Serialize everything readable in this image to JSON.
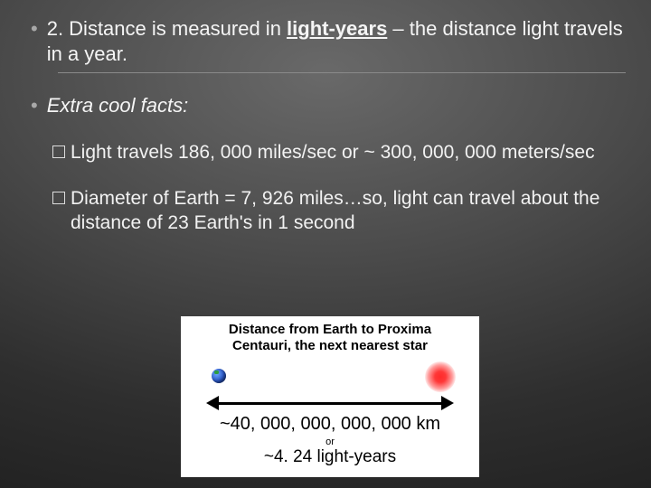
{
  "bullets": {
    "main": {
      "prefix": "2. Distance is measured in ",
      "keyword": "light-years",
      "suffix": " – the distance light travels in a year."
    },
    "extra": "Extra cool facts:"
  },
  "facts": {
    "a": "Light travels 186, 000 miles/sec or  ~ 300, 000, 000 meters/sec",
    "b": "Diameter of Earth = 7, 926 miles…so, light can travel about the distance of 23 Earth's in 1 second"
  },
  "diagram": {
    "title_line1": "Distance from Earth to Proxima",
    "title_line2": "Centauri, the next nearest star",
    "km": "~40, 000, 000, 000, 000 km",
    "or": "or",
    "ly": "~4. 24  light-years",
    "colors": {
      "box_bg": "#ffffff",
      "earth_main": "#2a57c8",
      "star_main": "#ff2a2a",
      "arrow": "#000000"
    }
  },
  "style": {
    "slide_bg_center": "#696969",
    "slide_bg_edge": "#1a1a1a",
    "text_color": "#f5f5f5",
    "bullet_color": "#a8a8a8",
    "hr_color": "#8a8a8a"
  }
}
